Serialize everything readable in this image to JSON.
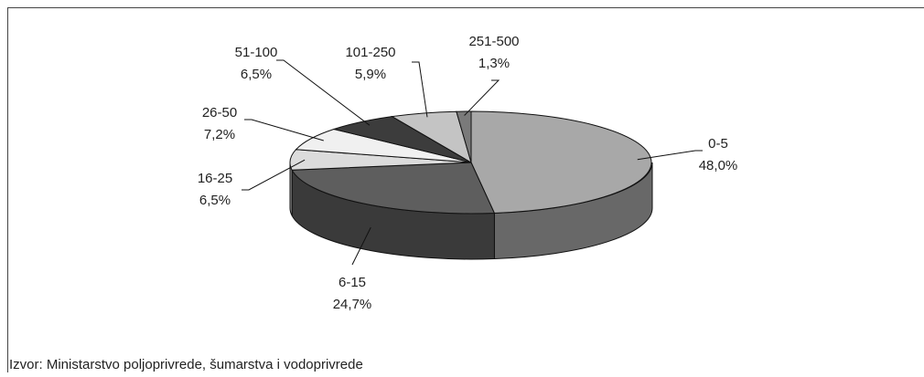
{
  "chart_data": {
    "type": "pie",
    "categories": [
      "0-5",
      "6-15",
      "16-25",
      "26-50",
      "51-100",
      "101-250",
      "251-500"
    ],
    "values": [
      48.0,
      24.7,
      6.5,
      7.2,
      6.5,
      5.9,
      1.3
    ],
    "value_labels": [
      "48,0%",
      "24,7%",
      "6,5%",
      "7,2%",
      "6,5%",
      "5,9%",
      "1,3%"
    ],
    "colors": [
      "#a8a8a8",
      "#5e5e5e",
      "#dcdcdc",
      "#f0f0f0",
      "#3c3c3c",
      "#c4c4c4",
      "#7a7a7a"
    ],
    "source": "Izvor: Ministarstvo poljoprivrede, šumarstva i vodoprivrede"
  }
}
